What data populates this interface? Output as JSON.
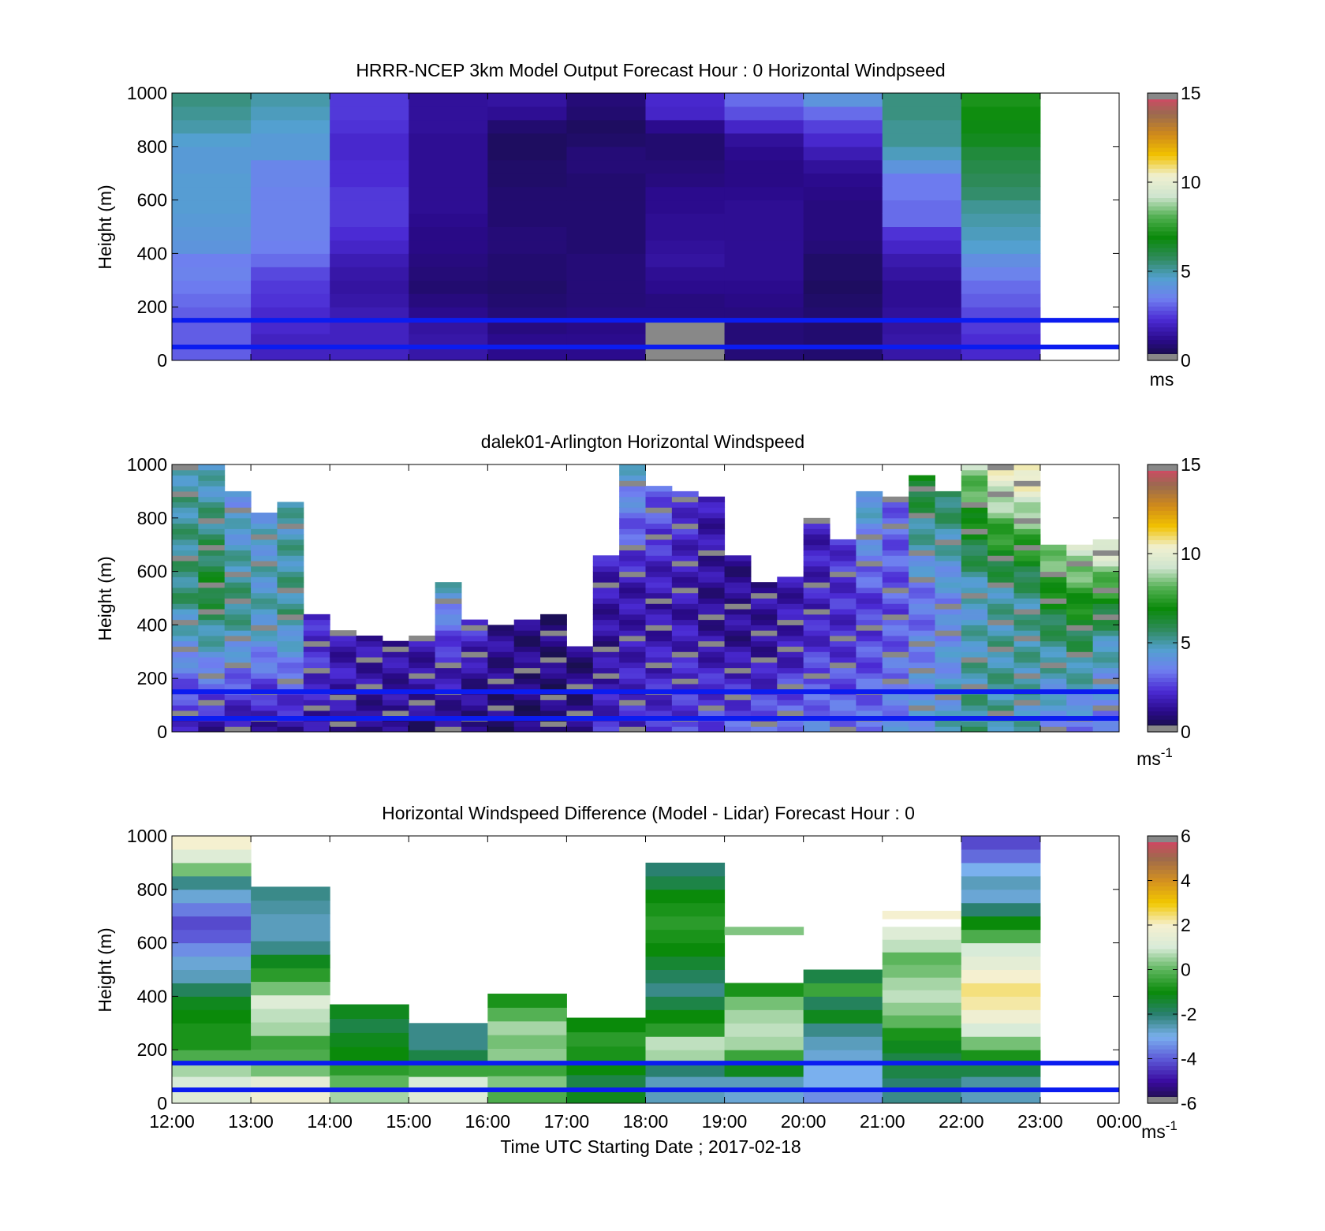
{
  "xlabel": "Time UTC  Starting Date ; 2017-02-18",
  "time_ticks": [
    "12:00",
    "13:00",
    "14:00",
    "15:00",
    "16:00",
    "17:00",
    "18:00",
    "19:00",
    "20:00",
    "21:00",
    "22:00",
    "23:00",
    "00:00"
  ],
  "chart_data": [
    {
      "type": "heatmap",
      "title": "HRRR-NCEP 3km Model Output   Forecast Hour : 0 Horizontal Windpseed",
      "ylabel": "Height (m)",
      "ylim": [
        0,
        1000
      ],
      "y_ticks": [
        0,
        200,
        400,
        600,
        800,
        1000
      ],
      "x": [
        "12:00",
        "13:00",
        "14:00",
        "15:00",
        "16:00",
        "17:00",
        "18:00",
        "19:00",
        "20:00",
        "21:00",
        "22:00"
      ],
      "heights": [
        25,
        75,
        125,
        175,
        225,
        275,
        325,
        375,
        425,
        475,
        525,
        575,
        625,
        675,
        725,
        775,
        825,
        875,
        925,
        975
      ],
      "colorbar": {
        "min": 0,
        "max": 15,
        "ticks": [
          0,
          5,
          10,
          15
        ],
        "unit": "ms"
      },
      "values_by_time": [
        [
          3,
          3,
          3,
          3,
          3.2,
          3.4,
          3.6,
          3.5,
          4.2,
          4.3,
          4.4,
          4.5,
          4.5,
          4.5,
          4.4,
          4.4,
          4.6,
          5,
          5.2,
          5.4
        ],
        [
          2,
          2,
          2.2,
          2.2,
          2.4,
          2.5,
          2.7,
          3.2,
          3.5,
          3.6,
          3.6,
          3.6,
          3.6,
          3.7,
          3.7,
          4.4,
          4.4,
          4.6,
          4.8,
          5
        ],
        [
          2,
          2,
          2,
          1.8,
          1.6,
          1.5,
          1.6,
          1.8,
          2.1,
          2.3,
          2.5,
          2.5,
          2.5,
          2.3,
          2.3,
          2.2,
          2.2,
          2.4,
          2.5,
          2.5
        ],
        [
          1.6,
          1.6,
          1.5,
          1.2,
          1,
          0.8,
          0.9,
          1,
          1.1,
          1.1,
          1.2,
          1.3,
          1.3,
          1.3,
          1.3,
          1.3,
          1.3,
          1.4,
          1.4,
          1.4
        ],
        [
          1.2,
          1.2,
          1,
          0.9,
          0.8,
          0.7,
          0.8,
          0.8,
          0.9,
          0.9,
          0.8,
          0.8,
          0.8,
          0.7,
          0.7,
          0.6,
          0.6,
          0.8,
          1.3,
          1.5
        ],
        [
          1.2,
          1.2,
          1.1,
          1,
          0.9,
          0.9,
          0.9,
          0.9,
          0.8,
          0.8,
          0.8,
          0.8,
          0.8,
          0.8,
          0.9,
          0.9,
          0.7,
          0.6,
          0.8,
          0.9
        ],
        [
          null,
          null,
          null,
          1,
          1,
          1.2,
          1.3,
          1.5,
          1.4,
          1.3,
          1.3,
          1.2,
          1.2,
          1,
          0.9,
          0.8,
          0.8,
          1.2,
          2.1,
          2.2
        ],
        [
          0.9,
          0.9,
          0.9,
          1,
          1.1,
          1.2,
          1.3,
          1.3,
          1.3,
          1.3,
          1.3,
          1.3,
          1.2,
          1.1,
          1.1,
          1.2,
          1.4,
          2.1,
          2.8,
          3.2
        ],
        [
          0.8,
          0.8,
          0.8,
          0.8,
          0.7,
          0.6,
          0.7,
          0.7,
          0.9,
          1,
          1,
          1,
          1.1,
          1.2,
          1.4,
          1.8,
          2.2,
          2.6,
          3.2,
          4.2
        ],
        [
          1.6,
          1.6,
          1.5,
          1.4,
          1.3,
          1.3,
          1.5,
          1.7,
          2.1,
          2.4,
          3.2,
          3.2,
          3.4,
          3.4,
          4.2,
          4.8,
          5.2,
          5.2,
          5.4,
          5.4
        ],
        [
          2.2,
          2.3,
          2.5,
          2.7,
          3,
          3.2,
          3.6,
          4,
          4.6,
          4.8,
          5,
          5.2,
          5.6,
          5.8,
          6,
          6.2,
          6.6,
          6.8,
          7,
          7.2
        ]
      ]
    },
    {
      "type": "heatmap",
      "title": "dalek01-Arlington  Horizontal Windspeed",
      "ylabel": "Height (m)",
      "ylim": [
        0,
        1000
      ],
      "y_ticks": [
        0,
        200,
        400,
        600,
        800,
        1000
      ],
      "colorbar": {
        "min": 0,
        "max": 15,
        "ticks": [
          0,
          5,
          10,
          15
        ],
        "unit": "ms",
        "unit_sup": "-1"
      },
      "profiles": [
        {
          "start": "12:00",
          "top": 1000,
          "low": 1.8,
          "mid": 5.5,
          "top_value": 5
        },
        {
          "start": "12:20",
          "top": 1000,
          "low": 1.5,
          "mid": 6.5,
          "top_value": 4.5
        },
        {
          "start": "12:40",
          "top": 900,
          "low": 1.4,
          "mid": 5.5,
          "top_value": 4
        },
        {
          "start": "13:00",
          "top": 820,
          "low": 1.3,
          "mid": 4.8,
          "top_value": 4.5
        },
        {
          "start": "13:20",
          "top": 860,
          "low": 1.5,
          "mid": 5.3,
          "top_value": 4.8
        },
        {
          "start": "13:40",
          "top": 430,
          "low": 1.4,
          "mid": 2.3,
          "top_value": 2
        },
        {
          "start": "14:00",
          "top": 370,
          "low": 1.2,
          "mid": 1.8,
          "top_value": 1.6
        },
        {
          "start": "14:20",
          "top": 360,
          "low": 1.1,
          "mid": 1.6,
          "top_value": 1.5
        },
        {
          "start": "14:40",
          "top": 330,
          "low": 1.0,
          "mid": 1.5,
          "top_value": 1.5
        },
        {
          "start": "15:00",
          "top": 360,
          "low": 1.0,
          "mid": 1.6,
          "top_value": 1.6
        },
        {
          "start": "15:20",
          "top": 560,
          "low": 1.1,
          "mid": 2.2,
          "top_value": 4.8
        },
        {
          "start": "15:40",
          "top": 420,
          "low": 1.0,
          "mid": 1.4,
          "top_value": 2.5
        },
        {
          "start": "16:00",
          "top": 400,
          "low": 0.9,
          "mid": 1.2,
          "top_value": 1.3
        },
        {
          "start": "16:20",
          "top": 420,
          "low": 0.8,
          "mid": 1.1,
          "top_value": 1.0
        },
        {
          "start": "16:40",
          "top": 440,
          "low": 0.8,
          "mid": 1.0,
          "top_value": 1.0
        },
        {
          "start": "17:00",
          "top": 320,
          "low": 1.4,
          "mid": 1.0,
          "top_value": 1.0
        },
        {
          "start": "17:20",
          "top": 650,
          "low": 2.2,
          "mid": 1.3,
          "top_value": 2.0
        },
        {
          "start": "17:40",
          "top": 1000,
          "low": 2.2,
          "mid": 1.6,
          "top_value": 4.5
        },
        {
          "start": "18:00",
          "top": 920,
          "low": 2.4,
          "mid": 1.5,
          "top_value": 3.2
        },
        {
          "start": "18:20",
          "top": 900,
          "low": 2.6,
          "mid": 1.6,
          "top_value": 2.5
        },
        {
          "start": "18:40",
          "top": 880,
          "low": 2.8,
          "mid": 1.2,
          "top_value": 1.8
        },
        {
          "start": "19:00",
          "top": 660,
          "low": 3.0,
          "mid": 1.3,
          "top_value": 1.2
        },
        {
          "start": "19:20",
          "top": 560,
          "low": 3.2,
          "mid": 1.5,
          "top_value": 1.4
        },
        {
          "start": "19:40",
          "top": 580,
          "low": 3.6,
          "mid": 1.8,
          "top_value": 1.6
        },
        {
          "start": "20:00",
          "top": 800,
          "low": 3.6,
          "mid": 2.0,
          "top_value": 1.8
        },
        {
          "start": "20:20",
          "top": 720,
          "low": 3.4,
          "mid": 2.2,
          "top_value": 2.4
        },
        {
          "start": "20:40",
          "top": 900,
          "low": 3.4,
          "mid": 2.4,
          "top_value": 4.8
        },
        {
          "start": "21:00",
          "top": 880,
          "low": 3.8,
          "mid": 2.8,
          "top_value": 3.2
        },
        {
          "start": "21:20",
          "top": 960,
          "low": 4.3,
          "mid": 3.2,
          "top_value": 6.8
        },
        {
          "start": "21:40",
          "top": 900,
          "low": 4.8,
          "mid": 3.6,
          "top_value": 6.0
        },
        {
          "start": "22:00",
          "top": 1000,
          "low": 5.4,
          "mid": 4.6,
          "top_value": 9.0
        },
        {
          "start": "22:20",
          "top": 1000,
          "low": 5.2,
          "mid": 5.0,
          "top_value": 10.5
        },
        {
          "start": "22:40",
          "top": 1000,
          "low": 4.8,
          "mid": 5.2,
          "top_value": 11.2
        },
        {
          "start": "23:00",
          "top": 700,
          "low": 3.8,
          "mid": 5.5,
          "top_value": 9.0
        },
        {
          "start": "23:20",
          "top": 700,
          "low": 3.5,
          "mid": 6.0,
          "top_value": 9.4
        },
        {
          "start": "23:40",
          "top": 720,
          "low": 3.2,
          "mid": 5.2,
          "top_value": 10.5
        }
      ]
    },
    {
      "type": "heatmap",
      "title": "Horizontal Windspeed Difference (Model - Lidar) Forecast Hour : 0",
      "ylabel": "Height (m)",
      "ylim": [
        0,
        1000
      ],
      "y_ticks": [
        0,
        200,
        400,
        600,
        800,
        1000
      ],
      "colorbar": {
        "min": -6,
        "max": 6,
        "ticks": [
          -6,
          -4,
          -2,
          0,
          2,
          4,
          6
        ],
        "unit": "ms",
        "unit_sup": "-1"
      },
      "columns": [
        {
          "start": "12:00",
          "bottom": 0,
          "top": 1000,
          "values_bottom_to_top": [
            1.2,
            1.0,
            0.6,
            -0.2,
            -0.8,
            -0.8,
            -1.0,
            -1.2,
            -1.8,
            -2.6,
            -2.8,
            -3.4,
            -4.0,
            -4.2,
            -3.6,
            -2.8,
            -2.2,
            0.2,
            1.2,
            2.0
          ]
        },
        {
          "start": "13:00",
          "bottom": 0,
          "top": 810,
          "values_bottom_to_top": [
            1.8,
            1.4,
            0.2,
            -0.2,
            -0.4,
            0.6,
            0.8,
            1.2,
            0.2,
            -0.6,
            -1.2,
            -2.2,
            -2.6,
            -2.6,
            -2.4,
            -2.2
          ]
        },
        {
          "start": "14:00",
          "bottom": 0,
          "top": 370,
          "values_bottom_to_top": [
            0.6,
            0.0,
            -0.6,
            -1.0,
            -1.2,
            -1.6,
            -1.2
          ]
        },
        {
          "start": "15:00",
          "bottom": 0,
          "top": 300,
          "values_bottom_to_top": [
            1.2,
            1.0,
            -0.4,
            -1.6,
            -2.2,
            -2.2
          ]
        },
        {
          "start": "16:00",
          "bottom": 0,
          "top": 410,
          "values_bottom_to_top": [
            -0.2,
            0.3,
            -0.4,
            0.4,
            0.2,
            0.6,
            -0.1,
            -0.8
          ]
        },
        {
          "start": "17:00",
          "bottom": 0,
          "top": 320,
          "values_bottom_to_top": [
            -1.2,
            -1.6,
            -1.0,
            -0.8,
            -0.6,
            -1.0
          ]
        },
        {
          "start": "18:00",
          "bottom": 0,
          "top": 900,
          "values_bottom_to_top": [
            -2.6,
            -2.6,
            -2.0,
            0.6,
            0.8,
            -0.6,
            -1.0,
            -1.6,
            -2.2,
            -1.8,
            -1.4,
            -1.0,
            -0.8,
            -0.6,
            -0.8,
            -1.0,
            -1.6,
            -2.0
          ]
        },
        {
          "start": "19:00",
          "bottom": 0,
          "top": 450,
          "values_bottom_to_top": [
            -2.8,
            -2.6,
            -1.2,
            -0.4,
            0.6,
            0.8,
            0.6,
            0.2,
            -0.8
          ]
        },
        {
          "start": "19:00",
          "bottom": 630,
          "top": 660,
          "values_bottom_to_top": [
            0.3
          ]
        },
        {
          "start": "20:00",
          "bottom": 0,
          "top": 500,
          "values_bottom_to_top": [
            -3.4,
            -3.0,
            -3.0,
            -2.8,
            -2.6,
            -2.2,
            -1.2,
            -1.8,
            -0.4,
            -1.6
          ]
        },
        {
          "start": "21:00",
          "bottom": 0,
          "top": 660,
          "values_bottom_to_top": [
            -2.2,
            -2.0,
            -1.6,
            -1.6,
            -1.2,
            -0.8,
            0.0,
            0.4,
            0.8,
            0.6,
            0.2,
            0.0,
            0.8,
            1.2
          ]
        },
        {
          "start": "21:00",
          "bottom": 690,
          "top": 720,
          "values_bottom_to_top": [
            2.0
          ]
        },
        {
          "start": "22:00",
          "bottom": 0,
          "top": 1000,
          "values_bottom_to_top": [
            -2.6,
            -2.4,
            -1.6,
            -0.8,
            0.2,
            1.0,
            1.8,
            2.2,
            2.4,
            2.0,
            1.4,
            1.0,
            -0.2,
            -1.0,
            -2.0,
            -2.8,
            -2.6,
            -3.0,
            -3.8,
            -4.2
          ]
        }
      ]
    }
  ],
  "reference_lines": {
    "heights_m": [
      50,
      150
    ],
    "color": "#0b1cf0"
  },
  "colors": {
    "speed_scale": [
      "#111133",
      "#2a0a8a",
      "#4b2bd4",
      "#6f7ff0",
      "#53a0d0",
      "#2e8a5a",
      "#0a8a0a",
      "#52b052",
      "#cfe5cf",
      "#f0f0d0",
      "#f2c200",
      "#d08a1a",
      "#9a6a50",
      "#e0406a"
    ],
    "diff_scale": [
      "#181236",
      "#3a0aa0",
      "#5d5ad8",
      "#7ab0ee",
      "#2a8070",
      "#0a8a0a",
      "#5cb55c",
      "#d8ebd8",
      "#f5f0d0",
      "#f2c800",
      "#d49020",
      "#9e6a4c",
      "#e03a6a"
    ],
    "missing": "#888888"
  }
}
